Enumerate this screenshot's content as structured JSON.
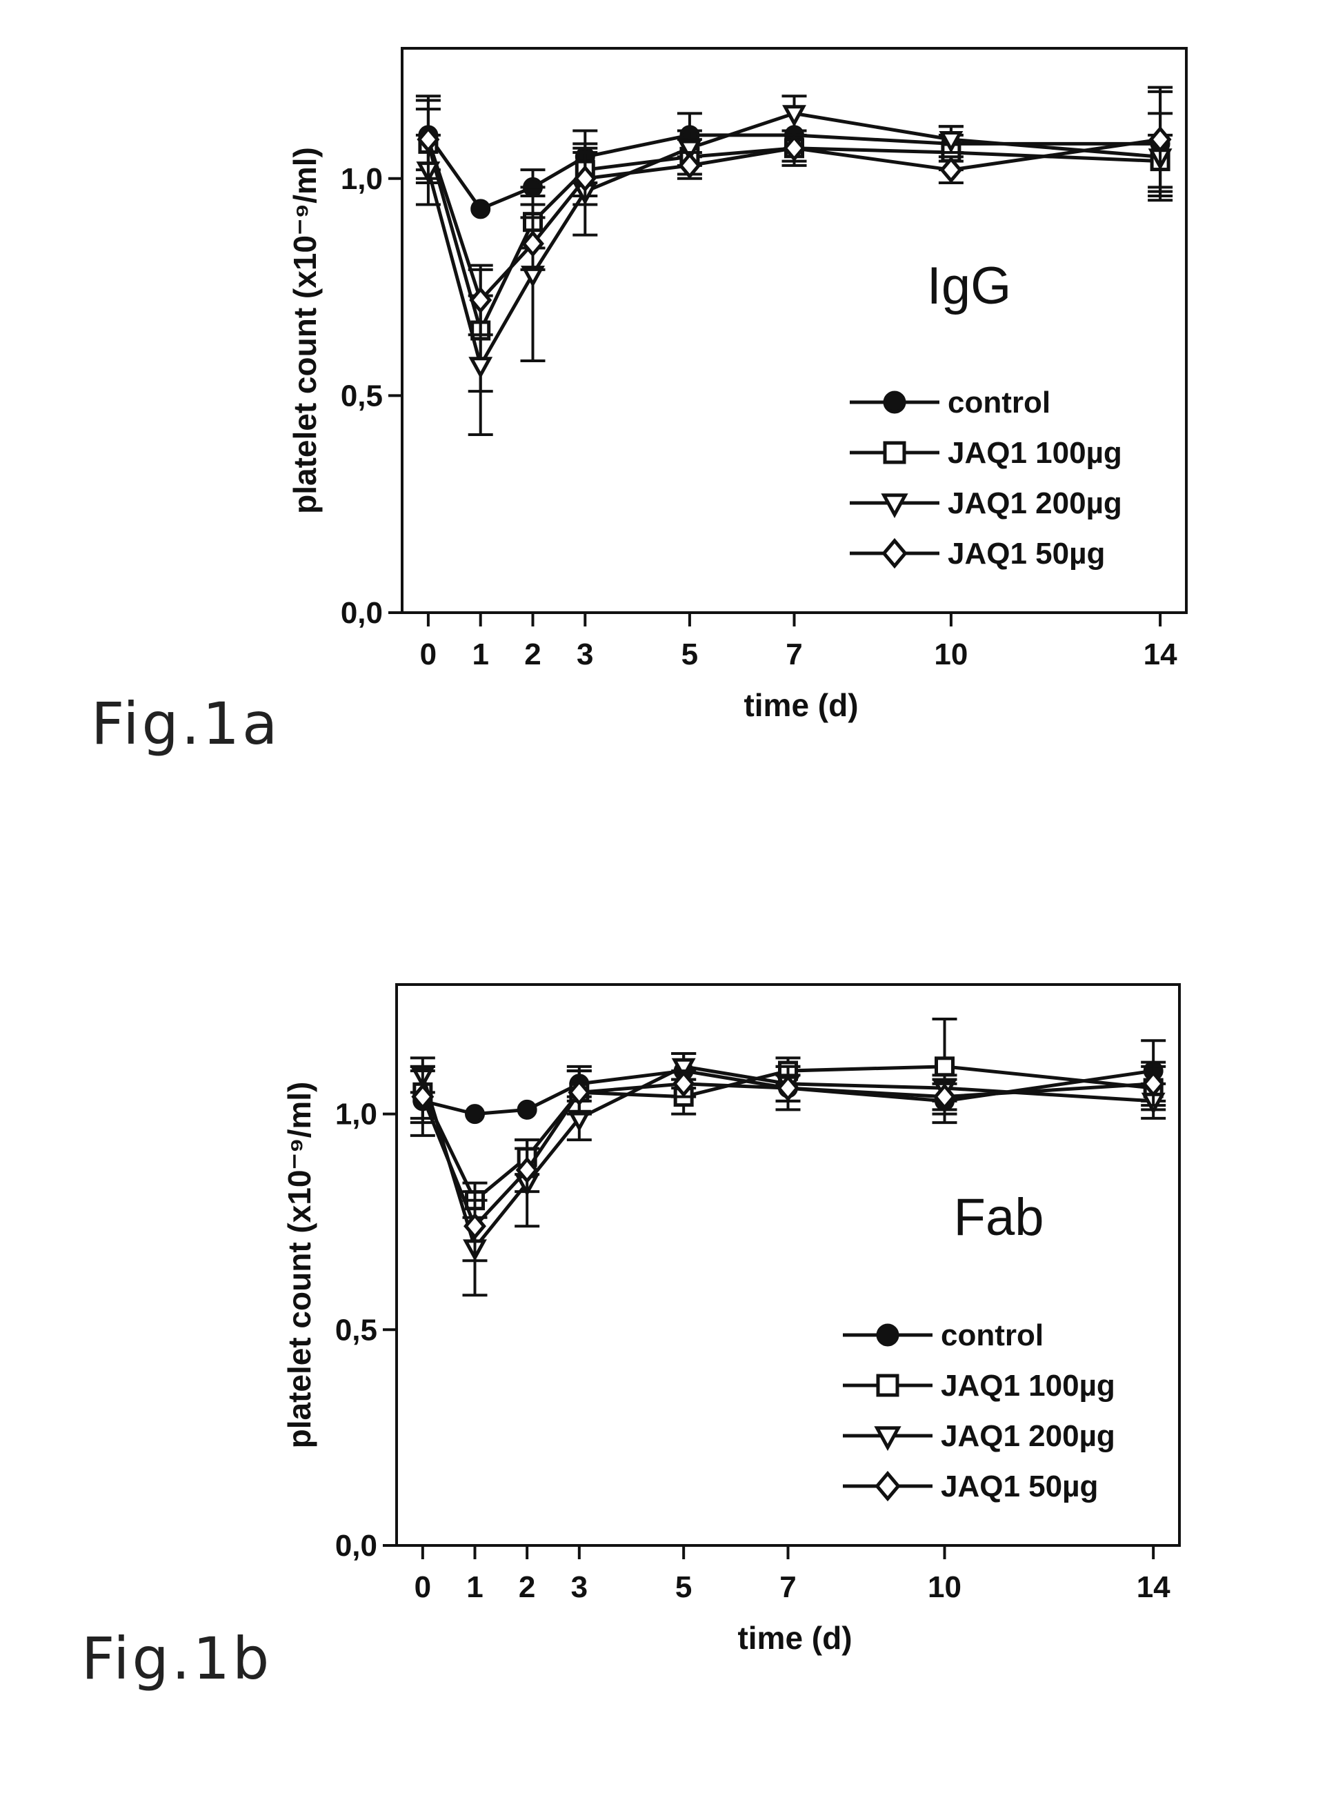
{
  "chart_data": [
    {
      "type": "line",
      "figure_label": "Fig.1a",
      "inset_label": "IgG",
      "xlabel": "time (d)",
      "ylabel": "platelet count (x10⁻⁹/ml)",
      "x": [
        0,
        1,
        2,
        3,
        5,
        7,
        10,
        14
      ],
      "x_tick_labels": [
        "0",
        "1",
        "2",
        "3",
        "5",
        "7",
        "10",
        "14"
      ],
      "xlim": [
        -0.5,
        14.5
      ],
      "ylim": [
        0.0,
        1.3
      ],
      "y_ticks": [
        0.0,
        0.5,
        1.0
      ],
      "y_tick_labels": [
        "0,0",
        "0,5",
        "1,0"
      ],
      "grid": false,
      "legend_position": "bottom-right",
      "series": [
        {
          "name": "control",
          "marker": "circle-filled",
          "values": [
            1.1,
            0.93,
            0.98,
            1.05,
            1.1,
            1.1,
            1.08,
            1.08
          ],
          "errors": [
            0.08,
            0.0,
            0.04,
            0.06,
            0.05,
            0.0,
            0.04,
            0.12
          ]
        },
        {
          "name": "JAQ1 100µg",
          "marker": "square-open",
          "values": [
            1.08,
            0.65,
            0.9,
            1.02,
            1.05,
            1.07,
            1.06,
            1.04
          ],
          "errors": [
            0.08,
            0.14,
            0.06,
            0.06,
            0.04,
            0.03,
            0.04,
            0.06
          ]
        },
        {
          "name": "JAQ1 200µg",
          "marker": "triangle-down-open",
          "values": [
            1.02,
            0.57,
            0.78,
            0.97,
            1.07,
            1.15,
            1.09,
            1.05
          ],
          "errors": [
            0.08,
            0.16,
            0.2,
            0.1,
            0.04,
            0.04,
            0.03,
            0.1
          ]
        },
        {
          "name": "JAQ1 50µg",
          "marker": "diamond-open",
          "values": [
            1.09,
            0.72,
            0.85,
            1.0,
            1.03,
            1.07,
            1.02,
            1.09
          ],
          "errors": [
            0.1,
            0.08,
            0.06,
            0.06,
            0.03,
            0.04,
            0.03,
            0.12
          ]
        }
      ]
    },
    {
      "type": "line",
      "figure_label": "Fig.1b",
      "inset_label": "Fab",
      "xlabel": "time (d)",
      "ylabel": "platelet count (x10⁻⁹/ml)",
      "x": [
        0,
        1,
        2,
        3,
        5,
        7,
        10,
        14
      ],
      "x_tick_labels": [
        "0",
        "1",
        "2",
        "3",
        "5",
        "7",
        "10",
        "14"
      ],
      "xlim": [
        -0.5,
        14.5
      ],
      "ylim": [
        0.0,
        1.3
      ],
      "y_ticks": [
        0.0,
        0.5,
        1.0
      ],
      "y_tick_labels": [
        "0,0",
        "0,5",
        "1,0"
      ],
      "grid": false,
      "legend_position": "bottom-right",
      "series": [
        {
          "name": "control",
          "marker": "circle-filled",
          "values": [
            1.03,
            1.0,
            1.01,
            1.07,
            1.1,
            1.06,
            1.03,
            1.1
          ],
          "errors": [
            0.08,
            0.0,
            0.0,
            0.04,
            0.04,
            0.05,
            0.05,
            0.07
          ]
        },
        {
          "name": "JAQ1 100µg",
          "marker": "square-open",
          "values": [
            1.05,
            0.8,
            0.9,
            1.05,
            1.04,
            1.1,
            1.11,
            1.06
          ],
          "errors": [
            0.06,
            0.04,
            0.04,
            0.05,
            0.04,
            0.03,
            0.11,
            0.05
          ]
        },
        {
          "name": "JAQ1 200µg",
          "marker": "triangle-down-open",
          "values": [
            1.09,
            0.69,
            0.84,
            0.99,
            1.11,
            1.07,
            1.06,
            1.03
          ],
          "errors": [
            0.04,
            0.11,
            0.1,
            0.05,
            0.03,
            0.04,
            0.03,
            0.04
          ]
        },
        {
          "name": "JAQ1 50µg",
          "marker": "diamond-open",
          "values": [
            1.04,
            0.74,
            0.87,
            1.05,
            1.07,
            1.06,
            1.04,
            1.07
          ],
          "errors": [
            0.06,
            0.08,
            0.05,
            0.05,
            0.03,
            0.03,
            0.03,
            0.05
          ]
        }
      ]
    }
  ]
}
